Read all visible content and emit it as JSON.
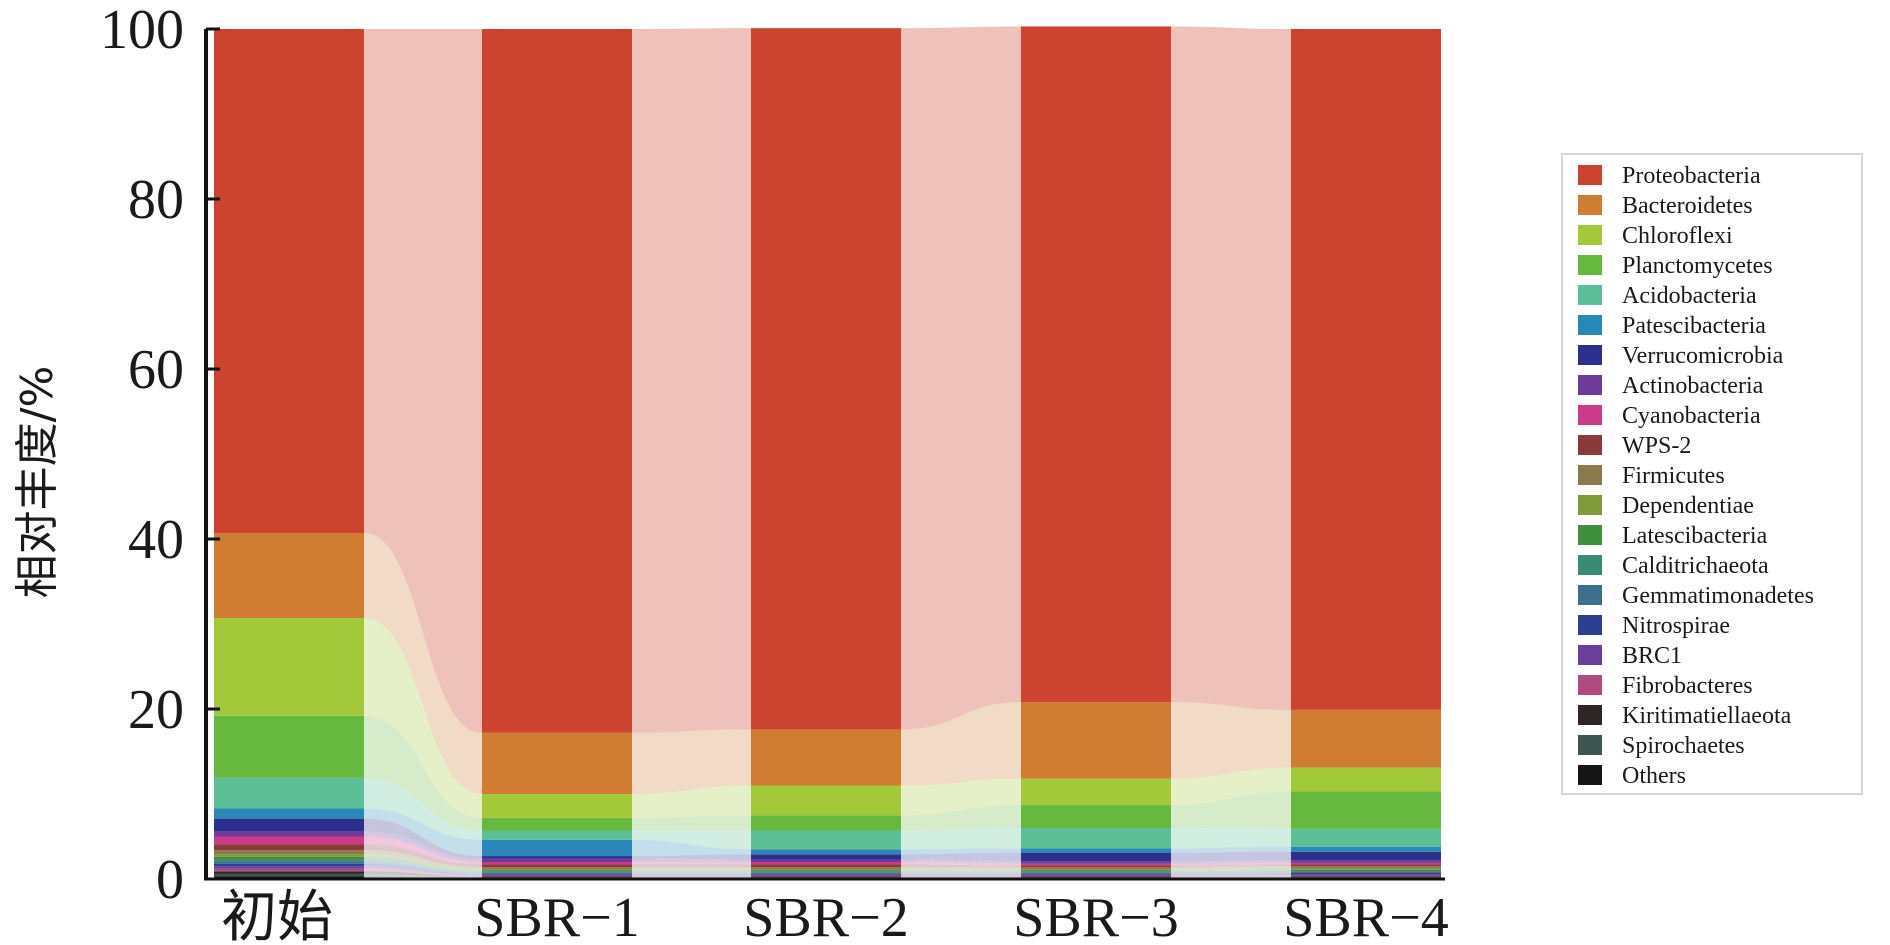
{
  "chart_data": {
    "type": "bar",
    "subtype": "stacked-percent-with-flow",
    "title": "",
    "xlabel": "",
    "ylabel": "相对丰度/%",
    "ylim": [
      0,
      100
    ],
    "yticks": [
      "0",
      "20",
      "40",
      "60",
      "80",
      "100"
    ],
    "grid": false,
    "legend_position": "right",
    "categories": [
      "初始",
      "SBR−1",
      "SBR−2",
      "SBR−3",
      "SBR−4"
    ],
    "series": [
      {
        "name": "Proteobacteria",
        "color": "#cc4330",
        "values": [
          59.3,
          82.8,
          82.5,
          79.5,
          80.1
        ]
      },
      {
        "name": "Bacteroidetes",
        "color": "#d07d33",
        "values": [
          10.0,
          7.2,
          6.6,
          9.0,
          6.8
        ]
      },
      {
        "name": "Chloroflexi",
        "color": "#a3c93a",
        "values": [
          11.5,
          2.8,
          3.5,
          3.1,
          2.8
        ]
      },
      {
        "name": "Planctomycetes",
        "color": "#67b83f",
        "values": [
          7.3,
          1.5,
          1.8,
          2.7,
          4.4
        ]
      },
      {
        "name": "Acidobacteria",
        "color": "#5dbf98",
        "values": [
          3.6,
          1.1,
          2.2,
          2.4,
          2.1
        ]
      },
      {
        "name": "Patescibacteria",
        "color": "#2b87b8",
        "values": [
          1.2,
          1.9,
          0.6,
          0.5,
          0.6
        ]
      },
      {
        "name": "Verrucomicrobia",
        "color": "#2d2f8c",
        "values": [
          1.5,
          0.3,
          0.6,
          1.0,
          1.0
        ]
      },
      {
        "name": "Actinobacteria",
        "color": "#6d3b98",
        "values": [
          0.6,
          0.4,
          0.3,
          0.3,
          0.3
        ]
      },
      {
        "name": "Cyanobacteria",
        "color": "#cc3a8a",
        "values": [
          0.9,
          0.3,
          0.3,
          0.2,
          0.2
        ]
      },
      {
        "name": "WPS-2",
        "color": "#8a3a3a",
        "values": [
          0.7,
          0.3,
          0.3,
          0.2,
          0.2
        ]
      },
      {
        "name": "Firmicutes",
        "color": "#8a7a4e",
        "values": [
          0.5,
          0.3,
          0.3,
          0.3,
          0.3
        ]
      },
      {
        "name": "Dependentiae",
        "color": "#7f9a3a",
        "values": [
          0.3,
          0.1,
          0.1,
          0.1,
          0.1
        ]
      },
      {
        "name": "Latescibacteria",
        "color": "#3f8f3f",
        "values": [
          0.3,
          0.1,
          0.1,
          0.1,
          0.1
        ]
      },
      {
        "name": "Calditrichaeota",
        "color": "#3b8a73",
        "values": [
          0.2,
          0.1,
          0.1,
          0.1,
          0.1
        ]
      },
      {
        "name": "Gemmatimonadetes",
        "color": "#3e6f8a",
        "values": [
          0.3,
          0.2,
          0.2,
          0.2,
          0.2
        ]
      },
      {
        "name": "Nitrospirae",
        "color": "#2c3f8f",
        "values": [
          0.3,
          0.1,
          0.1,
          0.1,
          0.2
        ]
      },
      {
        "name": "BRC1",
        "color": "#6a3f99",
        "values": [
          0.3,
          0.1,
          0.1,
          0.1,
          0.1
        ]
      },
      {
        "name": "Fibrobacteres",
        "color": "#b04a80",
        "values": [
          0.3,
          0.1,
          0.1,
          0.1,
          0.1
        ]
      },
      {
        "name": "Kiritimatiellaeota",
        "color": "#2e2626",
        "values": [
          0.3,
          0.1,
          0.1,
          0.1,
          0.1
        ]
      },
      {
        "name": "Spirochaetes",
        "color": "#3e5650",
        "values": [
          0.3,
          0.1,
          0.1,
          0.1,
          0.1
        ]
      },
      {
        "name": "Others",
        "color": "#151515",
        "values": [
          0.3,
          0.1,
          0.1,
          0.1,
          0.1
        ]
      }
    ]
  }
}
